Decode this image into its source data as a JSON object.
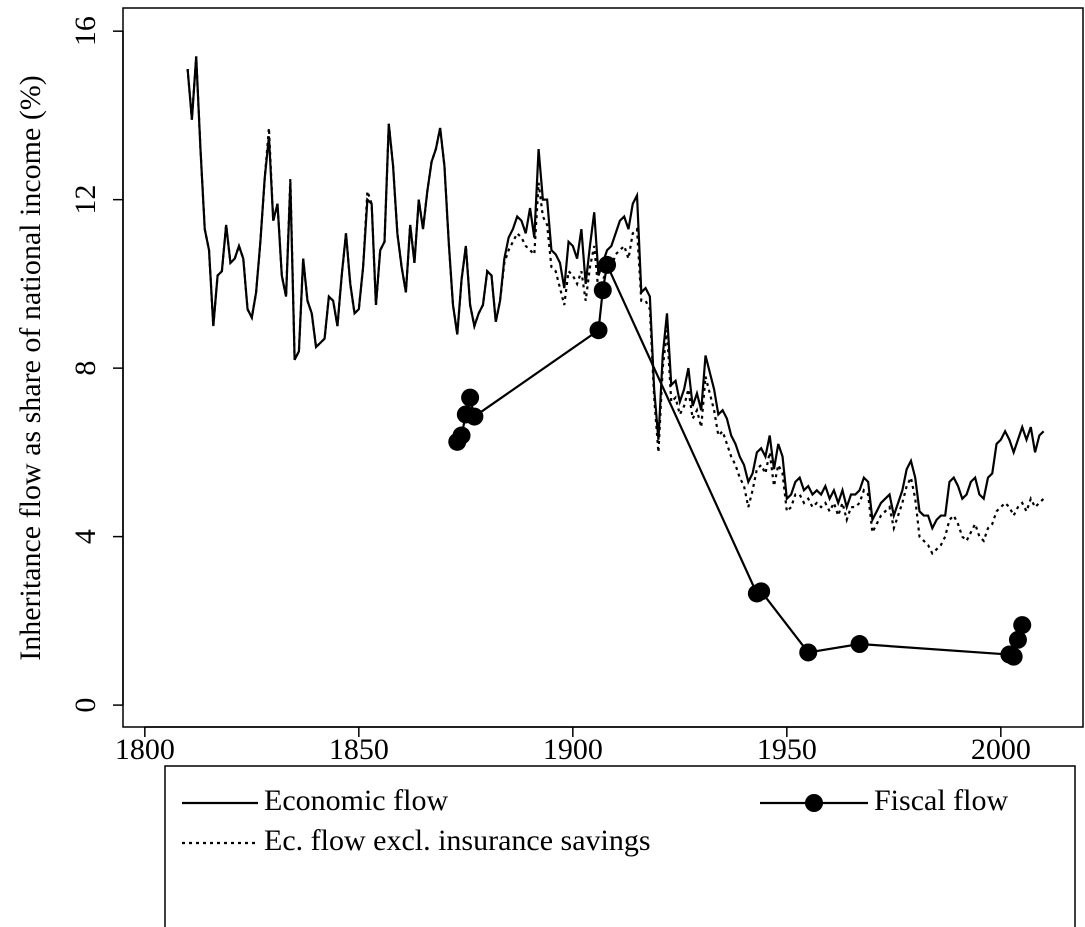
{
  "chart_data": {
    "type": "line",
    "ylabel": "Inheritance flow as share of national income (%)",
    "xlim": [
      1794.9,
      2019.2
    ],
    "ylim": [
      -0.52,
      16.55
    ],
    "xticks": [
      1800,
      1850,
      1900,
      1950,
      2000
    ],
    "yticks": [
      0,
      4,
      8,
      12,
      16
    ],
    "legend": "below",
    "x": [
      1810,
      1811,
      1812,
      1813,
      1814,
      1815,
      1816,
      1817,
      1818,
      1819,
      1820,
      1821,
      1822,
      1823,
      1824,
      1825,
      1826,
      1827,
      1828,
      1829,
      1830,
      1831,
      1832,
      1833,
      1834,
      1835,
      1836,
      1837,
      1838,
      1839,
      1840,
      1841,
      1842,
      1843,
      1844,
      1845,
      1846,
      1847,
      1848,
      1849,
      1850,
      1851,
      1852,
      1853,
      1854,
      1855,
      1856,
      1857,
      1858,
      1859,
      1860,
      1861,
      1862,
      1863,
      1864,
      1865,
      1866,
      1867,
      1868,
      1869,
      1870,
      1871,
      1872,
      1873,
      1874,
      1875,
      1876,
      1877,
      1878,
      1879,
      1880,
      1881,
      1882,
      1883,
      1884,
      1885,
      1886,
      1887,
      1888,
      1889,
      1890,
      1891,
      1892,
      1893,
      1894,
      1895,
      1896,
      1897,
      1898,
      1899,
      1900,
      1901,
      1902,
      1903,
      1904,
      1905,
      1906,
      1907,
      1908,
      1909,
      1910,
      1911,
      1912,
      1913,
      1914,
      1915,
      1916,
      1917,
      1918,
      1919,
      1920,
      1921,
      1922,
      1923,
      1924,
      1925,
      1926,
      1927,
      1928,
      1929,
      1930,
      1931,
      1932,
      1933,
      1934,
      1935,
      1936,
      1937,
      1938,
      1939,
      1940,
      1941,
      1942,
      1943,
      1944,
      1945,
      1946,
      1947,
      1948,
      1949,
      1950,
      1951,
      1952,
      1953,
      1954,
      1955,
      1956,
      1957,
      1958,
      1959,
      1960,
      1961,
      1962,
      1963,
      1964,
      1965,
      1966,
      1967,
      1968,
      1969,
      1970,
      1971,
      1972,
      1973,
      1974,
      1975,
      1976,
      1977,
      1978,
      1979,
      1980,
      1981,
      1982,
      1983,
      1984,
      1985,
      1986,
      1987,
      1988,
      1989,
      1990,
      1991,
      1992,
      1993,
      1994,
      1995,
      1996,
      1997,
      1998,
      1999,
      2000,
      2001,
      2002,
      2003,
      2004,
      2005,
      2006,
      2007,
      2008,
      2009,
      2010
    ],
    "series": [
      {
        "name": "Economic flow",
        "color": "#000000",
        "linestyle": "solid",
        "values": [
          15.1,
          13.9,
          15.4,
          13.2,
          11.3,
          10.8,
          9.0,
          10.2,
          10.3,
          11.4,
          10.5,
          10.6,
          10.9,
          10.6,
          9.4,
          9.2,
          9.8,
          11.0,
          12.5,
          13.5,
          11.5,
          11.9,
          10.2,
          9.7,
          12.4,
          8.2,
          8.4,
          10.6,
          9.6,
          9.3,
          8.5,
          8.6,
          8.7,
          9.7,
          9.6,
          9.0,
          10.2,
          11.2,
          10.0,
          9.3,
          9.4,
          10.4,
          12.0,
          11.9,
          9.5,
          10.8,
          11.0,
          13.8,
          12.8,
          11.2,
          10.4,
          9.8,
          11.4,
          10.5,
          12.0,
          11.3,
          12.2,
          12.9,
          13.2,
          13.7,
          12.8,
          11.0,
          9.5,
          8.8,
          10.1,
          10.9,
          9.5,
          9.0,
          9.3,
          9.5,
          10.3,
          10.2,
          9.1,
          9.6,
          10.6,
          11.1,
          11.3,
          11.6,
          11.5,
          11.2,
          11.8,
          11.1,
          13.2,
          12.0,
          12.0,
          10.8,
          10.7,
          10.5,
          9.9,
          11.0,
          10.9,
          10.6,
          11.3,
          10.0,
          10.9,
          11.7,
          10.2,
          10.5,
          10.8,
          10.9,
          11.2,
          11.5,
          11.6,
          11.3,
          11.9,
          12.1,
          9.8,
          9.9,
          9.7,
          7.5,
          6.3,
          8.3,
          9.3,
          7.6,
          7.7,
          7.2,
          7.5,
          8.0,
          7.1,
          7.4,
          7.0,
          8.3,
          7.9,
          7.5,
          6.9,
          7.0,
          6.8,
          6.4,
          6.2,
          5.9,
          5.7,
          5.3,
          5.5,
          6.0,
          6.1,
          5.9,
          6.4,
          5.6,
          6.2,
          5.9,
          4.9,
          5.0,
          5.3,
          5.4,
          5.1,
          5.2,
          5.0,
          5.1,
          5.0,
          5.2,
          4.9,
          5.1,
          4.8,
          5.1,
          4.7,
          5.0,
          5.0,
          5.1,
          5.4,
          5.3,
          4.4,
          4.6,
          4.8,
          4.9,
          5.0,
          4.5,
          4.8,
          5.1,
          5.6,
          5.8,
          5.4,
          4.6,
          4.5,
          4.5,
          4.2,
          4.4,
          4.5,
          4.5,
          5.3,
          5.4,
          5.2,
          4.9,
          5.0,
          5.3,
          5.4,
          5.0,
          4.9,
          5.4,
          5.5,
          6.2,
          6.3,
          6.5,
          6.3,
          6.0,
          6.3,
          6.6,
          6.3,
          6.6,
          6.0,
          6.4,
          6.5
        ]
      },
      {
        "name": "Ec. flow excl. insurance savings",
        "color": "#000000",
        "linestyle": "dotted",
        "values": [
          15.1,
          13.9,
          15.4,
          13.2,
          11.3,
          10.8,
          9.0,
          10.2,
          10.3,
          11.4,
          10.5,
          10.6,
          10.9,
          10.6,
          9.4,
          9.2,
          9.8,
          11.0,
          12.5,
          13.7,
          11.5,
          11.9,
          10.2,
          9.7,
          12.5,
          8.2,
          8.4,
          10.6,
          9.6,
          9.3,
          8.5,
          8.6,
          8.7,
          9.7,
          9.6,
          9.0,
          10.2,
          11.2,
          10.0,
          9.3,
          9.4,
          10.4,
          12.2,
          11.9,
          9.5,
          10.8,
          11.0,
          13.8,
          12.8,
          11.2,
          10.4,
          9.8,
          11.4,
          10.5,
          12.0,
          11.3,
          12.2,
          12.9,
          13.2,
          13.7,
          12.8,
          11.0,
          9.5,
          8.8,
          10.1,
          10.9,
          9.5,
          9.0,
          9.3,
          9.5,
          10.3,
          10.2,
          9.1,
          9.6,
          10.5,
          10.8,
          11.0,
          11.2,
          11.1,
          10.9,
          10.8,
          10.7,
          12.4,
          11.6,
          11.4,
          10.4,
          10.3,
          9.9,
          9.5,
          10.3,
          10.2,
          10.0,
          10.3,
          9.6,
          10.4,
          10.9,
          9.8,
          10.1,
          10.3,
          10.4,
          10.7,
          10.8,
          10.9,
          10.6,
          11.2,
          11.3,
          9.6,
          9.6,
          9.4,
          7.3,
          6.0,
          8.0,
          8.9,
          7.2,
          7.3,
          6.9,
          7.1,
          7.5,
          6.8,
          7.0,
          6.6,
          7.8,
          7.4,
          7.0,
          6.4,
          6.5,
          6.2,
          5.9,
          5.7,
          5.4,
          5.2,
          4.7,
          5.1,
          5.6,
          5.7,
          5.5,
          6.0,
          5.2,
          5.7,
          5.5,
          4.6,
          4.7,
          5.0,
          5.0,
          4.8,
          4.9,
          4.7,
          4.8,
          4.7,
          4.8,
          4.6,
          4.8,
          4.5,
          4.8,
          4.4,
          4.7,
          4.7,
          4.8,
          5.1,
          5.0,
          4.1,
          4.3,
          4.5,
          4.6,
          4.7,
          4.2,
          4.5,
          4.8,
          5.2,
          5.4,
          4.9,
          4.0,
          3.9,
          3.8,
          3.6,
          3.7,
          3.8,
          4.0,
          4.4,
          4.5,
          4.3,
          4.0,
          3.9,
          4.1,
          4.3,
          4.0,
          3.9,
          4.2,
          4.3,
          4.6,
          4.7,
          4.8,
          4.7,
          4.5,
          4.7,
          4.8,
          4.6,
          4.9,
          4.7,
          4.8,
          4.9
        ]
      },
      {
        "name": "Fiscal flow",
        "color": "#000000",
        "linestyle": "solid",
        "marker": "circle",
        "x": [
          1873,
          1874,
          1875,
          1876,
          1877,
          1906,
          1907,
          1908,
          1943,
          1944,
          1955,
          1967,
          2002,
          2003,
          2004,
          2005
        ],
        "values": [
          6.25,
          6.4,
          6.9,
          7.3,
          6.85,
          8.9,
          9.85,
          10.45,
          2.65,
          2.7,
          1.25,
          1.45,
          1.2,
          1.15,
          1.55,
          1.9
        ]
      }
    ]
  }
}
